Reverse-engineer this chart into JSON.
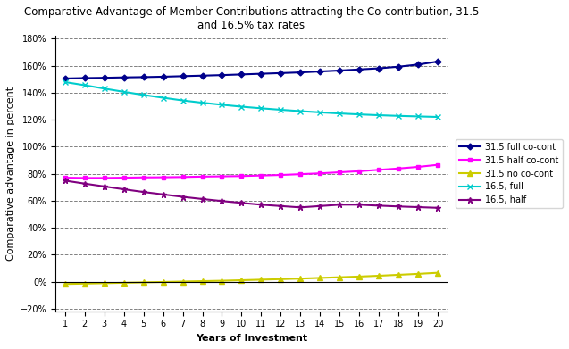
{
  "title": "Comparative Advantage of Member Contributions attracting the Co-contribution, 31.5\nand 16.5% tax rates",
  "xlabel": "Years of Investment",
  "ylabel": "Comparative advantage in percent",
  "years": [
    1,
    2,
    3,
    4,
    5,
    6,
    7,
    8,
    9,
    10,
    11,
    12,
    13,
    14,
    15,
    16,
    17,
    18,
    19,
    20
  ],
  "series": {
    "31.5 full co-cont": {
      "color": "#00008B",
      "marker": "D",
      "markersize": 3.5,
      "linewidth": 1.5,
      "values": [
        1.505,
        1.508,
        1.51,
        1.513,
        1.515,
        1.518,
        1.522,
        1.526,
        1.53,
        1.535,
        1.54,
        1.545,
        1.55,
        1.557,
        1.564,
        1.572,
        1.58,
        1.592,
        1.608,
        1.63
      ]
    },
    "31.5 half co-cont": {
      "color": "#FF00FF",
      "marker": "s",
      "markersize": 3.5,
      "linewidth": 1.5,
      "values": [
        0.77,
        0.768,
        0.768,
        0.77,
        0.772,
        0.773,
        0.775,
        0.778,
        0.78,
        0.782,
        0.786,
        0.79,
        0.796,
        0.802,
        0.81,
        0.818,
        0.828,
        0.838,
        0.85,
        0.865
      ]
    },
    "31.5 no co-cont": {
      "color": "#CCCC00",
      "marker": "^",
      "markersize": 4.5,
      "linewidth": 1.5,
      "values": [
        -0.018,
        -0.015,
        -0.012,
        -0.009,
        -0.006,
        -0.003,
        0.0,
        0.003,
        0.006,
        0.01,
        0.014,
        0.018,
        0.022,
        0.027,
        0.032,
        0.037,
        0.043,
        0.05,
        0.057,
        0.065
      ]
    },
    "16.5, full": {
      "color": "#00CCCC",
      "marker": "x",
      "markersize": 4.5,
      "linewidth": 1.5,
      "values": [
        1.478,
        1.455,
        1.43,
        1.406,
        1.383,
        1.362,
        1.342,
        1.325,
        1.31,
        1.296,
        1.284,
        1.273,
        1.263,
        1.254,
        1.246,
        1.239,
        1.233,
        1.228,
        1.224,
        1.22
      ]
    },
    "16.5, half": {
      "color": "#800080",
      "marker": "*",
      "markersize": 5,
      "linewidth": 1.5,
      "values": [
        0.748,
        0.726,
        0.705,
        0.684,
        0.664,
        0.646,
        0.628,
        0.612,
        0.597,
        0.583,
        0.57,
        0.56,
        0.55,
        0.56,
        0.57,
        0.57,
        0.563,
        0.557,
        0.552,
        0.547
      ]
    }
  },
  "ylim": [
    -0.22,
    1.82
  ],
  "yticks": [
    -0.2,
    0.0,
    0.2,
    0.4,
    0.6,
    0.8,
    1.0,
    1.2,
    1.4,
    1.6,
    1.8
  ],
  "background_color": "#FFFFFF",
  "plot_bg_color": "#FFFFFF",
  "title_fontsize": 8.5,
  "axis_label_fontsize": 8,
  "tick_fontsize": 7
}
